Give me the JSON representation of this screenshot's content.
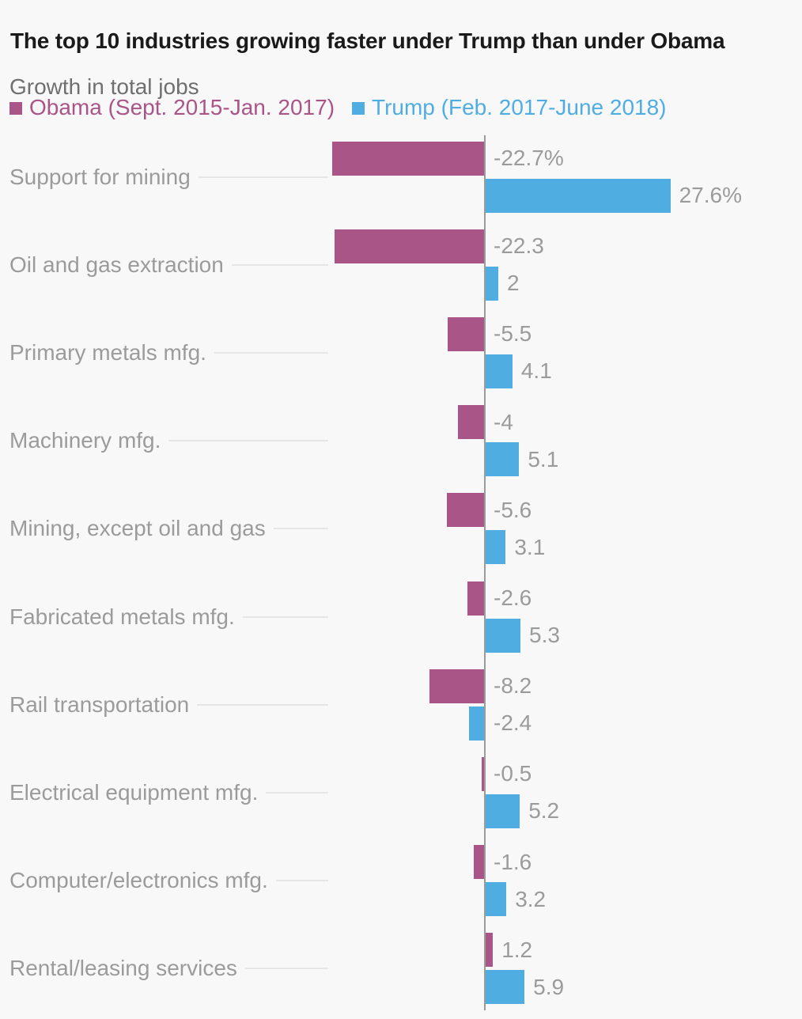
{
  "chart_data": {
    "type": "bar",
    "orientation": "horizontal",
    "title": "The top 10 industries growing faster under Trump than under Obama",
    "subtitle": "Growth in total jobs",
    "unit": "%",
    "grid": false,
    "legend_position": "top",
    "xlim": [
      -22.7,
      27.6
    ],
    "categories": [
      "Support for mining",
      "Oil and gas extraction",
      "Primary metals mfg.",
      "Machinery mfg.",
      "Mining, except oil and gas",
      "Fabricated metals mfg.",
      "Rail transportation",
      "Electrical equipment mfg.",
      "Computer/electronics mfg.",
      "Rental/leasing services"
    ],
    "series": [
      {
        "key": "obama",
        "name": "Obama (Sept. 2015-Jan. 2017)",
        "color": "#aa5588",
        "values": [
          -22.7,
          -22.3,
          -5.5,
          -4,
          -5.6,
          -2.6,
          -8.2,
          -0.5,
          -1.6,
          1.2
        ],
        "labels": [
          "-22.7%",
          "-22.3",
          "-5.5",
          "-4",
          "-5.6",
          "-2.6",
          "-8.2",
          "-0.5",
          "-1.6",
          "1.2"
        ]
      },
      {
        "key": "trump",
        "name": "Trump (Feb. 2017-June 2018)",
        "color": "#50ade2",
        "values": [
          27.6,
          2,
          4.1,
          5.1,
          3.1,
          5.3,
          -2.4,
          5.2,
          3.2,
          5.9
        ],
        "labels": [
          "27.6%",
          "2",
          "4.1",
          "5.1",
          "3.1",
          "5.3",
          "-2.4",
          "5.2",
          "3.2",
          "5.9"
        ]
      }
    ]
  },
  "colors": {
    "background": "#f8f8f8",
    "title_text": "#1a1a1a",
    "subtitle_text": "#6f6f6f",
    "label_text": "#9b9b9b",
    "axis_line": "#9b9b9b",
    "leader_line": "#e6e6e6"
  }
}
